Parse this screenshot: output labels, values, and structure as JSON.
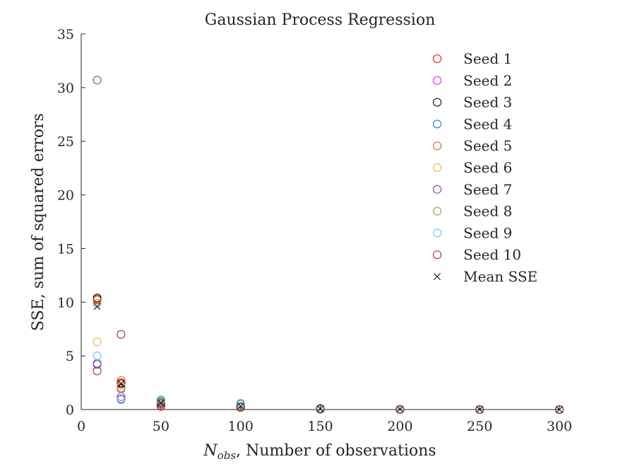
{
  "chart_data": {
    "type": "scatter",
    "title": "Gaussian Process Regression",
    "xlabel_main": "N",
    "xlabel_sub": "obs",
    "xlabel_rest": ", Number of observations",
    "ylabel": "SSE, sum of squared errors",
    "xlim": [
      0,
      300
    ],
    "ylim": [
      0,
      35
    ],
    "x_ticks": [
      0,
      50,
      100,
      150,
      200,
      250,
      300
    ],
    "y_ticks": [
      0,
      5,
      10,
      15,
      20,
      25,
      30,
      35
    ],
    "grid": false,
    "legend_position": "top-right",
    "x": [
      10,
      25,
      50,
      100,
      150,
      200,
      250,
      300
    ],
    "series": [
      {
        "name": "Seed 1",
        "marker": "circle",
        "color": "#ff0000",
        "values": [
          10.3,
          2.5,
          0.6,
          0.3,
          0.05,
          0.02,
          0.01,
          0.0
        ]
      },
      {
        "name": "Seed 2",
        "marker": "circle",
        "color": "#ff00ff",
        "values": [
          4.3,
          1.2,
          0.5,
          0.2,
          0.04,
          0.02,
          0.01,
          0.0
        ]
      },
      {
        "name": "Seed 3",
        "marker": "circle",
        "color": "#000000",
        "values": [
          10.4,
          2.4,
          0.9,
          0.3,
          0.06,
          0.03,
          0.01,
          0.0
        ]
      },
      {
        "name": "Seed 4",
        "marker": "circle",
        "color": "#0072bd",
        "values": [
          4.2,
          1.0,
          0.7,
          0.5,
          0.1,
          0.03,
          0.01,
          0.0
        ]
      },
      {
        "name": "Seed 5",
        "marker": "circle",
        "color": "#d95319",
        "values": [
          10.2,
          2.7,
          0.6,
          0.2,
          0.05,
          0.02,
          0.01,
          0.0
        ]
      },
      {
        "name": "Seed 6",
        "marker": "circle",
        "color": "#edb120",
        "values": [
          6.3,
          2.2,
          0.4,
          0.2,
          0.04,
          0.02,
          0.01,
          0.0
        ]
      },
      {
        "name": "Seed 7",
        "marker": "circle",
        "color": "#7e2f8e",
        "values": [
          30.7,
          2.0,
          0.5,
          0.2,
          0.04,
          0.02,
          0.01,
          0.0
        ]
      },
      {
        "name": "Seed 8",
        "marker": "circle",
        "color": "#77ac30",
        "values": [
          9.9,
          1.9,
          0.8,
          0.3,
          0.05,
          0.02,
          0.01,
          0.0
        ]
      },
      {
        "name": "Seed 9",
        "marker": "circle",
        "color": "#4dbeee",
        "values": [
          5.0,
          0.9,
          0.9,
          0.6,
          0.15,
          0.03,
          0.01,
          0.0
        ]
      },
      {
        "name": "Seed 10",
        "marker": "circle",
        "color": "#a2142f",
        "values": [
          3.6,
          7.0,
          0.3,
          0.2,
          0.04,
          0.02,
          0.01,
          0.0
        ]
      },
      {
        "name": "Mean SSE",
        "marker": "x",
        "color": "#000000",
        "values": [
          9.6,
          2.4,
          0.6,
          0.3,
          0.06,
          0.02,
          0.01,
          0.0
        ]
      }
    ]
  }
}
